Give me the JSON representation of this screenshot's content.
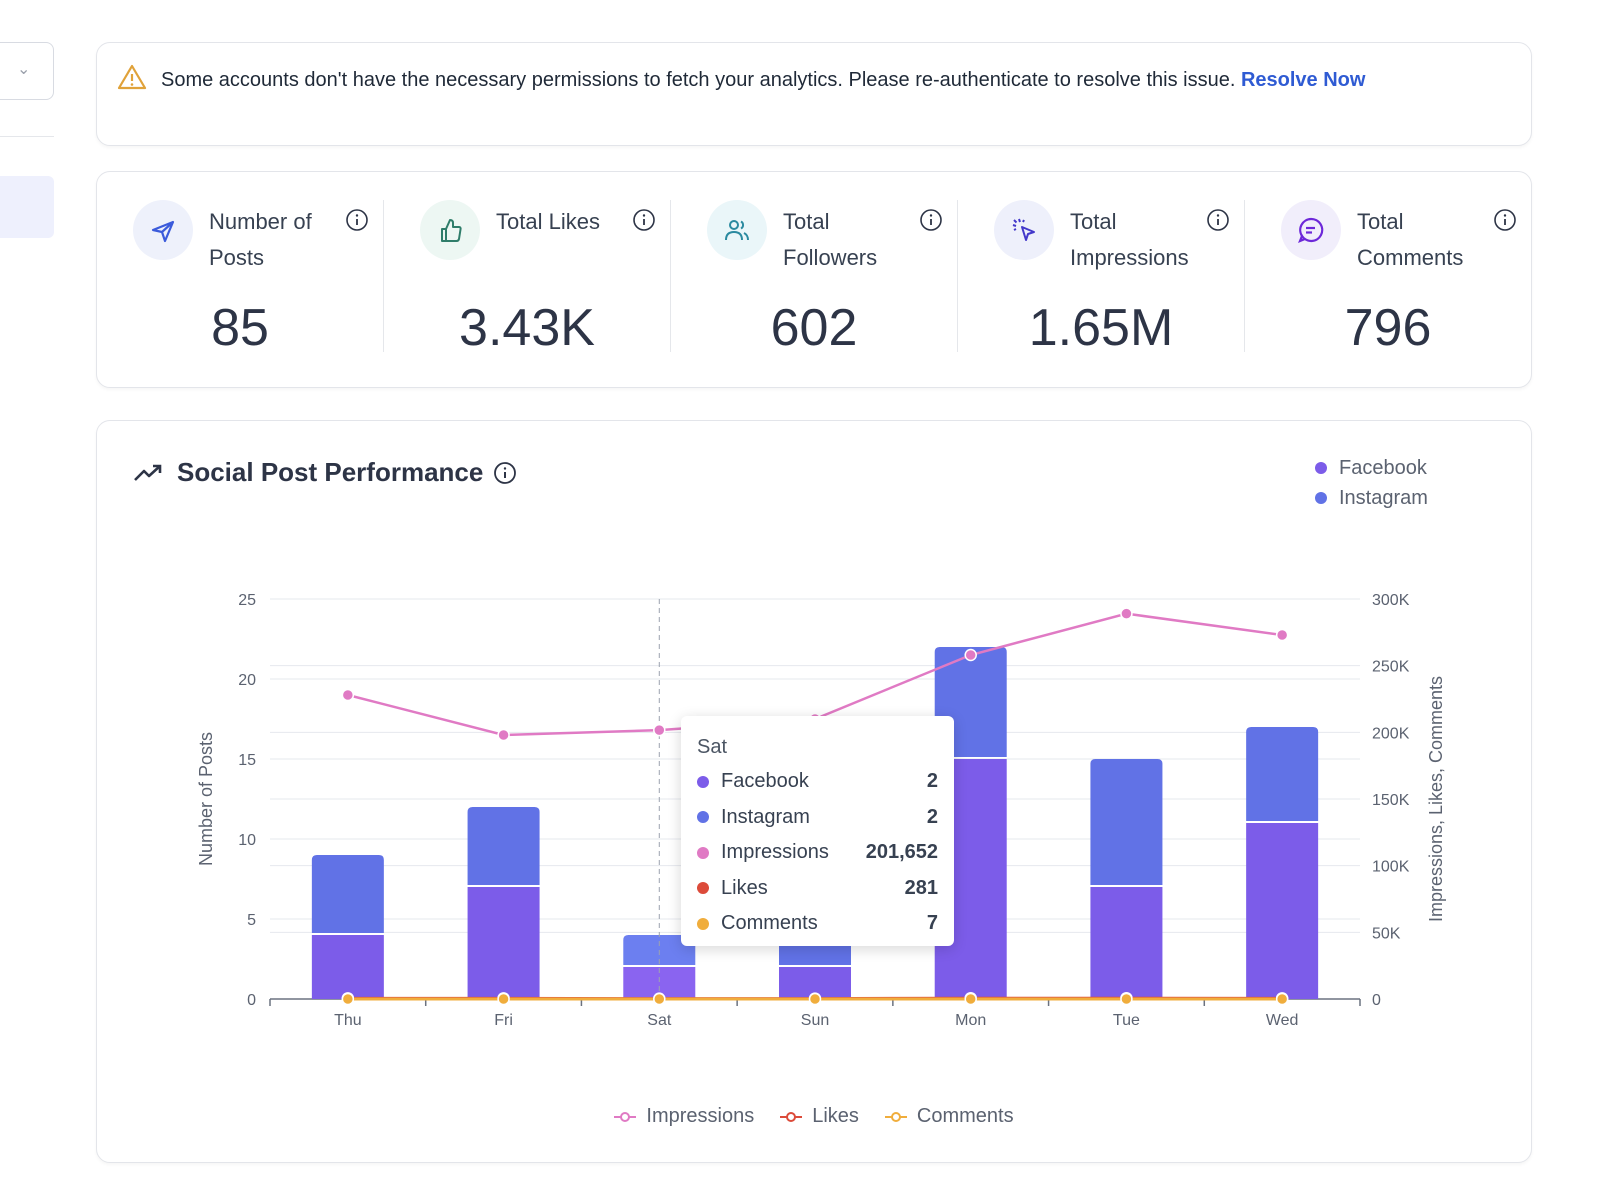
{
  "alert": {
    "message": "Some accounts don't have the necessary permissions to fetch your analytics. Please re-authenticate to resolve this issue.",
    "link": "Resolve Now"
  },
  "stats": [
    {
      "label": "Number of Posts",
      "value": "85",
      "icon": "send-icon",
      "color": "#3b5bdb",
      "bg": "#eef1fb"
    },
    {
      "label": "Total Likes",
      "value": "3.43K",
      "icon": "thumbs-up-icon",
      "color": "#2f7d6a",
      "bg": "#edf7f3"
    },
    {
      "label": "Total Followers",
      "value": "602",
      "icon": "users-icon",
      "color": "#2b8aa0",
      "bg": "#eaf6f9"
    },
    {
      "label": "Total Impressions",
      "value": "1.65M",
      "icon": "cursor-click-icon",
      "color": "#4338ca",
      "bg": "#eef0fb"
    },
    {
      "label": "Total Comments",
      "value": "796",
      "icon": "message-icon",
      "color": "#6d28d9",
      "bg": "#f1eefb"
    }
  ],
  "chart_title": "Social Post Performance",
  "tooltip": {
    "title": "Sat",
    "rows": [
      {
        "name": "Facebook",
        "value": "2",
        "color": "#7c5ce9"
      },
      {
        "name": "Instagram",
        "value": "2",
        "color": "#6172e6"
      },
      {
        "name": "Impressions",
        "value": "201,652",
        "color": "#e07ac4"
      },
      {
        "name": "Likes",
        "value": "281",
        "color": "#dc4b3a"
      },
      {
        "name": "Comments",
        "value": "7",
        "color": "#f0ad3c"
      }
    ]
  },
  "chart_data": {
    "type": "bar",
    "title": "Social Post Performance",
    "categories": [
      "Thu",
      "Fri",
      "Sat",
      "Sun",
      "Mon",
      "Tue",
      "Wed"
    ],
    "ylabel": "Number of Posts",
    "ylim": [
      0,
      25
    ],
    "yticks": [
      "0",
      "5",
      "10",
      "15",
      "20",
      "25"
    ],
    "y2label": "Impressions, Likes, Comments",
    "y2lim": [
      0,
      300000
    ],
    "y2ticks": [
      "0",
      "50K",
      "100K",
      "150K",
      "200K",
      "250K",
      "300K"
    ],
    "series": [
      {
        "name": "Facebook",
        "type": "bar",
        "axis": "left",
        "color": "#7c5ce9",
        "values": [
          4,
          7,
          2,
          2,
          15,
          7,
          11
        ]
      },
      {
        "name": "Instagram",
        "type": "bar",
        "axis": "left",
        "color": "#6172e6",
        "values": [
          5,
          5,
          2,
          2,
          7,
          8,
          6
        ]
      },
      {
        "name": "Impressions",
        "type": "line",
        "axis": "right",
        "color": "#e07ac4",
        "values": [
          228000,
          198000,
          201652,
          210000,
          258000,
          289000,
          273000
        ]
      },
      {
        "name": "Likes",
        "type": "line",
        "axis": "right",
        "color": "#dc4b3a",
        "values": [
          500,
          500,
          281,
          300,
          600,
          600,
          500
        ]
      },
      {
        "name": "Comments",
        "type": "line",
        "axis": "right",
        "color": "#f0ad3c",
        "values": [
          20,
          20,
          7,
          10,
          30,
          30,
          20
        ]
      }
    ],
    "legend_top": [
      "Facebook",
      "Instagram"
    ],
    "legend_bottom": [
      "Impressions",
      "Likes",
      "Comments"
    ],
    "hover": "Sat"
  }
}
